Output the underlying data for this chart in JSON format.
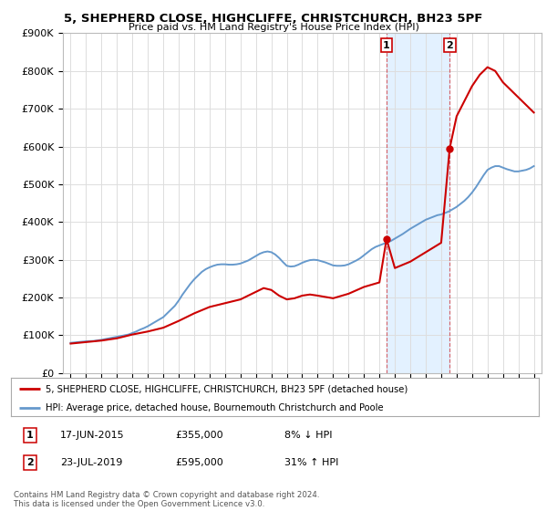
{
  "title": "5, SHEPHERD CLOSE, HIGHCLIFFE, CHRISTCHURCH, BH23 5PF",
  "subtitle": "Price paid vs. HM Land Registry's House Price Index (HPI)",
  "background_color": "#ffffff",
  "plot_bg_color": "#ffffff",
  "grid_color": "#dddddd",
  "sale1": {
    "date": 2015.46,
    "price": 355000,
    "label": "1",
    "pct": "8%",
    "dir": "↓",
    "date_str": "17-JUN-2015"
  },
  "sale2": {
    "date": 2019.55,
    "price": 595000,
    "label": "2",
    "pct": "31%",
    "dir": "↑",
    "date_str": "23-JUL-2019"
  },
  "hpi_line_color": "#6699cc",
  "property_line_color": "#cc0000",
  "shaded_region_color": "#ddeeff",
  "legend_label_property": "5, SHEPHERD CLOSE, HIGHCLIFFE, CHRISTCHURCH, BH23 5PF (detached house)",
  "legend_label_hpi": "HPI: Average price, detached house, Bournemouth Christchurch and Poole",
  "footnote": "Contains HM Land Registry data © Crown copyright and database right 2024.\nThis data is licensed under the Open Government Licence v3.0.",
  "ylim": [
    0,
    900000
  ],
  "xlim_start": 1994.5,
  "xlim_end": 2025.5,
  "yticks": [
    0,
    100000,
    200000,
    300000,
    400000,
    500000,
    600000,
    700000,
    800000,
    900000
  ],
  "ylabels": [
    "£0",
    "£100K",
    "£200K",
    "£300K",
    "£400K",
    "£500K",
    "£600K",
    "£700K",
    "£800K",
    "£900K"
  ],
  "hpi_years": [
    1995,
    1995.25,
    1995.5,
    1995.75,
    1996,
    1996.25,
    1996.5,
    1996.75,
    1997,
    1997.25,
    1997.5,
    1997.75,
    1998,
    1998.25,
    1998.5,
    1998.75,
    1999,
    1999.25,
    1999.5,
    1999.75,
    2000,
    2000.25,
    2000.5,
    2000.75,
    2001,
    2001.25,
    2001.5,
    2001.75,
    2002,
    2002.25,
    2002.5,
    2002.75,
    2003,
    2003.25,
    2003.5,
    2003.75,
    2004,
    2004.25,
    2004.5,
    2004.75,
    2005,
    2005.25,
    2005.5,
    2005.75,
    2006,
    2006.25,
    2006.5,
    2006.75,
    2007,
    2007.25,
    2007.5,
    2007.75,
    2008,
    2008.25,
    2008.5,
    2008.75,
    2009,
    2009.25,
    2009.5,
    2009.75,
    2010,
    2010.25,
    2010.5,
    2010.75,
    2011,
    2011.25,
    2011.5,
    2011.75,
    2012,
    2012.25,
    2012.5,
    2012.75,
    2013,
    2013.25,
    2013.5,
    2013.75,
    2014,
    2014.25,
    2014.5,
    2014.75,
    2015,
    2015.25,
    2015.5,
    2015.75,
    2016,
    2016.25,
    2016.5,
    2016.75,
    2017,
    2017.25,
    2017.5,
    2017.75,
    2018,
    2018.25,
    2018.5,
    2018.75,
    2019,
    2019.25,
    2019.5,
    2019.75,
    2020,
    2020.25,
    2020.5,
    2020.75,
    2021,
    2021.25,
    2021.5,
    2021.75,
    2022,
    2022.25,
    2022.5,
    2022.75,
    2023,
    2023.25,
    2023.5,
    2023.75,
    2024,
    2024.25,
    2024.5,
    2024.75,
    2025
  ],
  "hpi_values": [
    80000,
    81000,
    82000,
    83000,
    84000,
    84500,
    85000,
    86500,
    88000,
    90000,
    92000,
    94000,
    96000,
    98000,
    100000,
    102000,
    106000,
    110000,
    115000,
    119000,
    124000,
    130000,
    136000,
    142000,
    148000,
    158000,
    168000,
    178000,
    192000,
    208000,
    222000,
    236000,
    248000,
    258000,
    268000,
    275000,
    280000,
    284000,
    287000,
    288000,
    288000,
    287000,
    287000,
    288000,
    290000,
    294000,
    298000,
    304000,
    310000,
    316000,
    320000,
    322000,
    320000,
    314000,
    305000,
    294000,
    284000,
    282000,
    283000,
    287000,
    292000,
    296000,
    299000,
    300000,
    299000,
    296000,
    293000,
    289000,
    285000,
    284000,
    284000,
    285000,
    288000,
    293000,
    298000,
    304000,
    312000,
    320000,
    328000,
    334000,
    338000,
    342000,
    346000,
    350000,
    356000,
    362000,
    368000,
    375000,
    382000,
    388000,
    394000,
    400000,
    406000,
    410000,
    414000,
    418000,
    420000,
    424000,
    428000,
    434000,
    440000,
    448000,
    456000,
    466000,
    478000,
    492000,
    508000,
    524000,
    538000,
    544000,
    548000,
    548000,
    544000,
    540000,
    537000,
    534000,
    534000,
    536000,
    538000,
    542000,
    548000
  ],
  "prop_years": [
    1995,
    1995.5,
    1996,
    1997,
    1998,
    1999,
    2000,
    2001,
    2002,
    2003,
    2004,
    2005,
    2006,
    2007,
    2007.5,
    2008,
    2008.5,
    2009,
    2009.5,
    2010,
    2010.5,
    2011,
    2012,
    2013,
    2014,
    2015,
    2015.46,
    2016,
    2017,
    2018,
    2019,
    2019.55,
    2020,
    2020.5,
    2021,
    2021.5,
    2022,
    2022.5,
    2023,
    2023.5,
    2024,
    2024.5,
    2025
  ],
  "prop_values": [
    78000,
    80000,
    82000,
    86000,
    92000,
    102000,
    110000,
    120000,
    138000,
    158000,
    175000,
    185000,
    195000,
    215000,
    225000,
    220000,
    205000,
    195000,
    198000,
    205000,
    208000,
    205000,
    198000,
    210000,
    228000,
    240000,
    355000,
    278000,
    295000,
    320000,
    345000,
    595000,
    680000,
    720000,
    760000,
    790000,
    810000,
    800000,
    770000,
    750000,
    730000,
    710000,
    690000
  ]
}
